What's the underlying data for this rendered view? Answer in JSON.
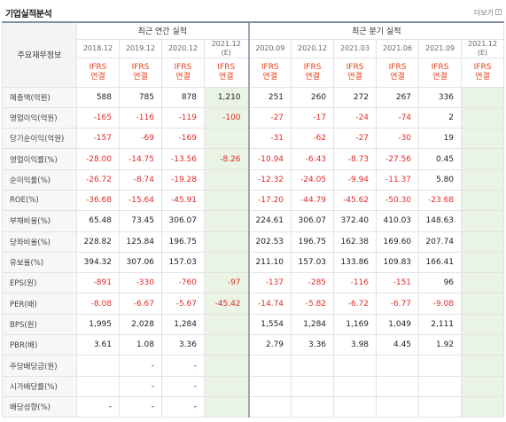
{
  "header": {
    "title": "기업실적분석",
    "more_label": "더보기"
  },
  "table": {
    "label_head": "주요재무정보",
    "group_annual": "최근 연간 실적",
    "group_quarter": "최근 분기 실적",
    "periods": [
      "2018.12",
      "2019.12",
      "2020.12",
      "2021.12",
      "2020.09",
      "2020.12",
      "2021.03",
      "2021.06",
      "2021.09",
      "2021.12"
    ],
    "period_est": [
      "",
      "",
      "",
      "(E)",
      "",
      "",
      "",
      "",
      "",
      "(E)"
    ],
    "std_top": [
      "IFRS",
      "IFRS",
      "IFRS",
      "IFRS",
      "IFRS",
      "IFRS",
      "IFRS",
      "IFRS",
      "IFRS",
      "IFRS"
    ],
    "std_bottom": [
      "연결",
      "연결",
      "연결",
      "연결",
      "연결",
      "연결",
      "연결",
      "연결",
      "연결",
      "연결"
    ],
    "rows": [
      {
        "label": "매출액(억원)",
        "values": [
          "588",
          "785",
          "878",
          "1,210",
          "251",
          "260",
          "272",
          "267",
          "336",
          ""
        ]
      },
      {
        "label": "영업이익(억원)",
        "values": [
          "-165",
          "-116",
          "-119",
          "-100",
          "-27",
          "-17",
          "-24",
          "-74",
          "2",
          ""
        ]
      },
      {
        "label": "당기순이익(억원)",
        "values": [
          "-157",
          "-69",
          "-169",
          "",
          "-31",
          "-62",
          "-27",
          "-30",
          "19",
          ""
        ]
      },
      {
        "label": "영업이익률(%)",
        "values": [
          "-28.00",
          "-14.75",
          "-13.56",
          "-8.26",
          "-10.94",
          "-6.43",
          "-8.73",
          "-27.56",
          "0.45",
          ""
        ]
      },
      {
        "label": "순이익률(%)",
        "values": [
          "-26.72",
          "-8.74",
          "-19.28",
          "",
          "-12.32",
          "-24.05",
          "-9.94",
          "-11.37",
          "5.80",
          ""
        ]
      },
      {
        "label": "ROE(%)",
        "values": [
          "-36.68",
          "-15.64",
          "-45.91",
          "",
          "-17.20",
          "-44.79",
          "-45.62",
          "-50.30",
          "-23.68",
          ""
        ]
      },
      {
        "label": "부채비율(%)",
        "values": [
          "65.48",
          "73.45",
          "306.07",
          "",
          "224.61",
          "306.07",
          "372.40",
          "410.03",
          "148.63",
          ""
        ]
      },
      {
        "label": "당좌비율(%)",
        "values": [
          "228.82",
          "125.84",
          "196.75",
          "",
          "202.53",
          "196.75",
          "162.38",
          "169.60",
          "207.74",
          ""
        ]
      },
      {
        "label": "유보율(%)",
        "values": [
          "394.32",
          "307.06",
          "157.03",
          "",
          "211.10",
          "157.03",
          "133.86",
          "109.83",
          "166.41",
          ""
        ]
      },
      {
        "label": "EPS(원)",
        "values": [
          "-891",
          "-330",
          "-760",
          "-97",
          "-137",
          "-285",
          "-116",
          "-151",
          "96",
          ""
        ]
      },
      {
        "label": "PER(배)",
        "values": [
          "-8.08",
          "-6.67",
          "-5.67",
          "-45.42",
          "-14.74",
          "-5.82",
          "-6.72",
          "-6.77",
          "-9.08",
          ""
        ]
      },
      {
        "label": "BPS(원)",
        "values": [
          "1,995",
          "2,028",
          "1,284",
          "",
          "1,554",
          "1,284",
          "1,169",
          "1,049",
          "2,111",
          ""
        ]
      },
      {
        "label": "PBR(배)",
        "values": [
          "3.61",
          "1.08",
          "3.36",
          "",
          "2.79",
          "3.36",
          "3.98",
          "4.45",
          "1.92",
          ""
        ]
      },
      {
        "label": "주당배당금(원)",
        "values": [
          "",
          "-",
          "-",
          "",
          "",
          "",
          "",
          "",
          "",
          ""
        ]
      },
      {
        "label": "시가배당률(%)",
        "values": [
          "",
          "-",
          "-",
          "",
          "",
          "",
          "",
          "",
          "",
          ""
        ]
      },
      {
        "label": "배당성향(%)",
        "values": [
          "-",
          "-",
          "-",
          "",
          "",
          "",
          "",
          "",
          "",
          ""
        ]
      }
    ]
  },
  "colors": {
    "negative": "#e02b2b",
    "standard": "#e8401c",
    "estimate_bg": "#eaf4e4",
    "header_border": "#7f8fa4"
  }
}
